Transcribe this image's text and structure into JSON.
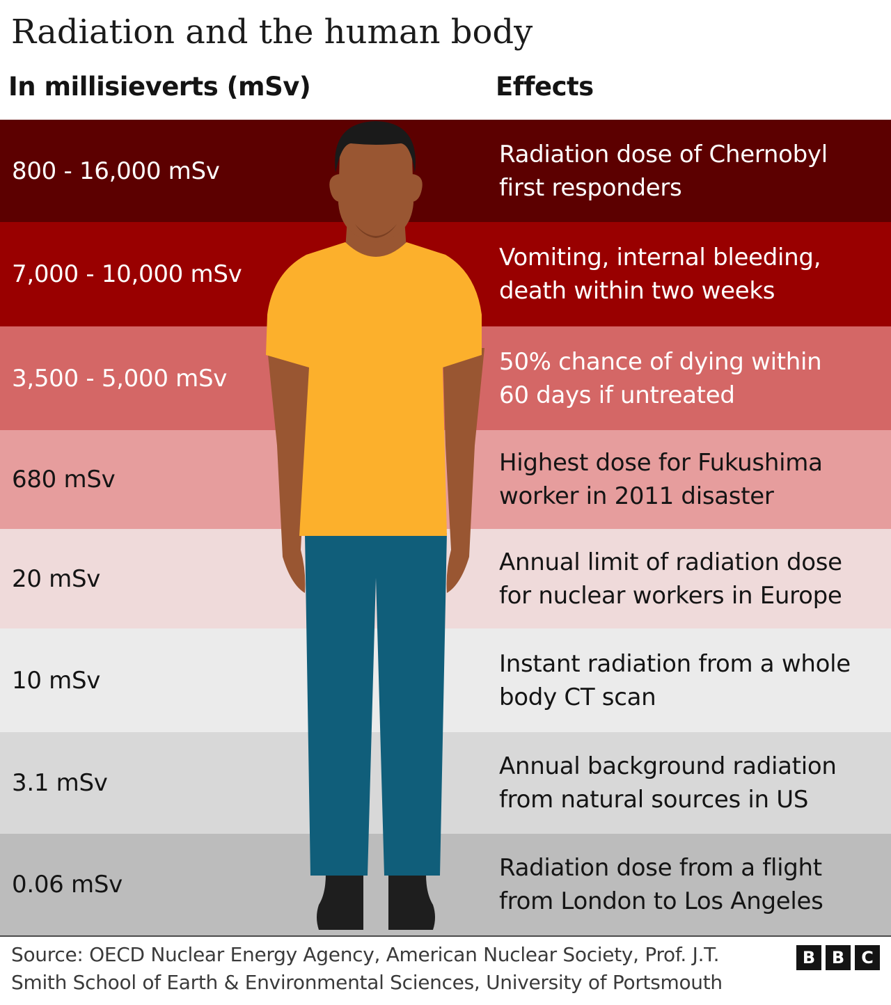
{
  "title": "Radiation and the human body",
  "headers": {
    "left": "In millisieverts (mSv)",
    "right": "Effects"
  },
  "bands": [
    {
      "dose": "800 - 16,000 mSv",
      "effect_line1": "Radiation dose of Chernobyl",
      "effect_line2": "first responders",
      "bg": "#5c0000",
      "text_color": "#ffffff"
    },
    {
      "dose": "7,000 - 10,000 mSv",
      "effect_line1": "Vomiting, internal bleeding,",
      "effect_line2": "death within two weeks",
      "bg": "#990000",
      "text_color": "#ffffff"
    },
    {
      "dose": "3,500 - 5,000 mSv",
      "effect_line1": "50% chance of dying within",
      "effect_line2": "60 days if untreated",
      "bg": "#d46766",
      "text_color": "#ffffff"
    },
    {
      "dose": "680 mSv",
      "effect_line1": "Highest dose for Fukushima",
      "effect_line2": "worker in 2011 disaster",
      "bg": "#e69d9d",
      "text_color": "#141414"
    },
    {
      "dose": "20 mSv",
      "effect_line1": "Annual limit of radiation dose",
      "effect_line2": "for nuclear workers in Europe",
      "bg": "#efdada",
      "text_color": "#141414"
    },
    {
      "dose": "10 mSv",
      "effect_line1": "Instant radiation from a whole",
      "effect_line2": "body CT scan",
      "bg": "#ebebeb",
      "text_color": "#141414"
    },
    {
      "dose": "3.1 mSv",
      "effect_line1": "Annual background radiation",
      "effect_line2": "from natural sources in US",
      "bg": "#d8d8d8",
      "text_color": "#141414"
    },
    {
      "dose": "0.06 mSv",
      "effect_line1": "Radiation dose from a flight",
      "effect_line2": "from London to Los Angeles",
      "bg": "#bcbcbc",
      "text_color": "#141414"
    }
  ],
  "source": {
    "line1": "Source: OECD Nuclear Energy Agency, American Nuclear Society, Prof. J.T.",
    "line2": "Smith School of Earth & Environmental Sciences, University of Portsmouth"
  },
  "logo": {
    "b1": "B",
    "b2": "B",
    "c": "C"
  },
  "colors": {
    "skin": "#995632",
    "skin_shadow": "#7a3f22",
    "hair": "#1a1a1a",
    "shirt": "#fcb02c",
    "pants": "#105e7a",
    "shoes": "#1e1e1e"
  }
}
